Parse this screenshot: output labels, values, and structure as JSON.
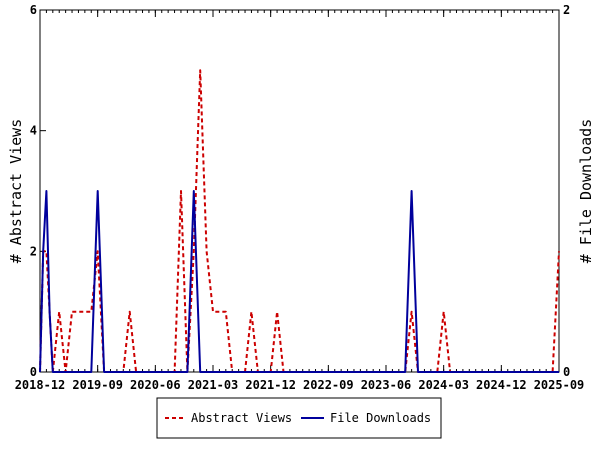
{
  "chart_data": {
    "type": "line",
    "title": "",
    "xlabel": "",
    "ylabel_left": "# Abstract Views",
    "ylabel_right": "# File Downloads",
    "x_tick_labels": [
      "2018-12",
      "2019-09",
      "2020-06",
      "2021-03",
      "2021-12",
      "2022-09",
      "2023-06",
      "2024-03",
      "2024-12",
      "2025-09"
    ],
    "ylim_left": [
      0,
      6
    ],
    "ylim_right": [
      0,
      2
    ],
    "y_ticks_left": [
      0,
      2,
      4,
      6
    ],
    "y_ticks_right": [
      0,
      2
    ],
    "x_range_months": [
      0,
      81
    ],
    "legend_position": "bottom-center",
    "grid": false,
    "series": [
      {
        "name": "Abstract Views",
        "axis": "left",
        "color": "#cc0000",
        "dash": "dashed",
        "points": [
          [
            0,
            0
          ],
          [
            0.5,
            2
          ],
          [
            1,
            2
          ],
          [
            1.5,
            1
          ],
          [
            2,
            0
          ],
          [
            3,
            1
          ],
          [
            4,
            0
          ],
          [
            5,
            1
          ],
          [
            6,
            1
          ],
          [
            7,
            1
          ],
          [
            8,
            1
          ],
          [
            9,
            2
          ],
          [
            10,
            0
          ],
          [
            13,
            0
          ],
          [
            14,
            1
          ],
          [
            15,
            0
          ],
          [
            21,
            0
          ],
          [
            22,
            3
          ],
          [
            23,
            0
          ],
          [
            24,
            2
          ],
          [
            25,
            5
          ],
          [
            26,
            2
          ],
          [
            27,
            1
          ],
          [
            28,
            1
          ],
          [
            29,
            1
          ],
          [
            30,
            0
          ],
          [
            32,
            0
          ],
          [
            33,
            1
          ],
          [
            34,
            0
          ],
          [
            36,
            0
          ],
          [
            37,
            1
          ],
          [
            38,
            0
          ],
          [
            57,
            0
          ],
          [
            58,
            1
          ],
          [
            59,
            0
          ],
          [
            62,
            0
          ],
          [
            63,
            1
          ],
          [
            64,
            0
          ],
          [
            71,
            0
          ],
          [
            72,
            0
          ],
          [
            73,
            0
          ],
          [
            74,
            0
          ],
          [
            75,
            0
          ],
          [
            76,
            0
          ],
          [
            77,
            0
          ],
          [
            78,
            0
          ],
          [
            79,
            0
          ],
          [
            80,
            0
          ],
          [
            81,
            2
          ]
        ]
      },
      {
        "name": "File Downloads",
        "axis": "right",
        "color": "#00009c",
        "dash": "solid",
        "points": [
          [
            0,
            0
          ],
          [
            0.5,
            0.67
          ],
          [
            1,
            1
          ],
          [
            1.5,
            0.33
          ],
          [
            2,
            0
          ],
          [
            8,
            0
          ],
          [
            9,
            1
          ],
          [
            10,
            0
          ],
          [
            23,
            0
          ],
          [
            24,
            1
          ],
          [
            25,
            0
          ],
          [
            57,
            0
          ],
          [
            58,
            1
          ],
          [
            59,
            0
          ],
          [
            81,
            0
          ]
        ]
      }
    ]
  }
}
